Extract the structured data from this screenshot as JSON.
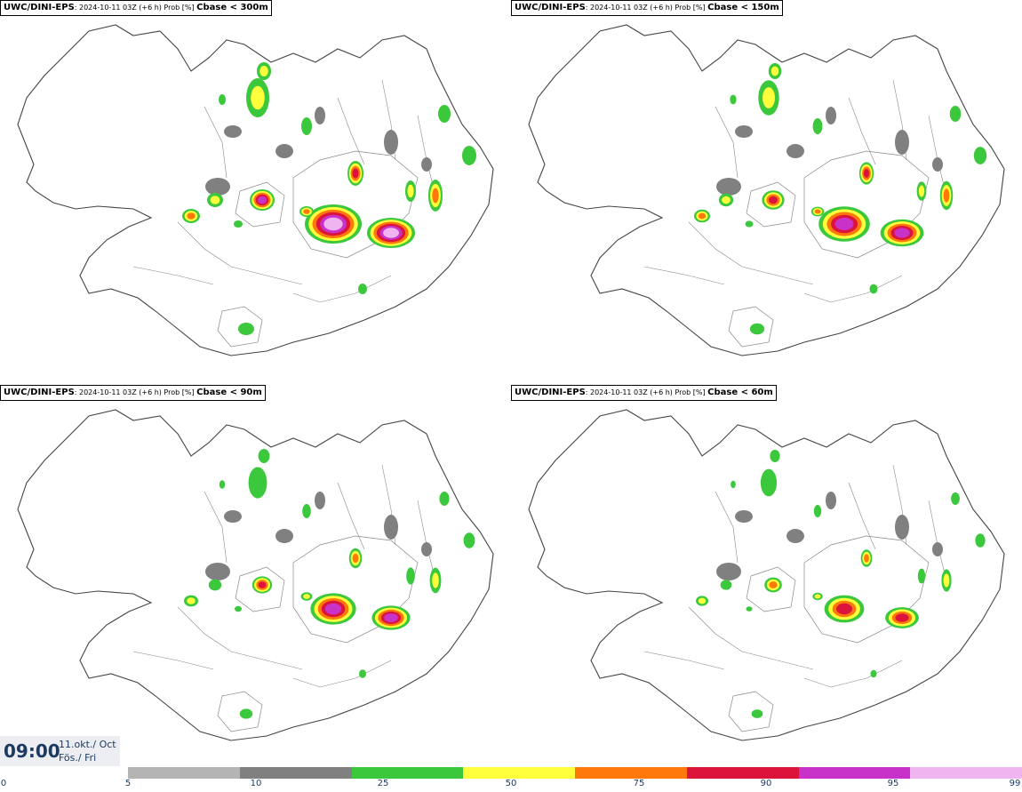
{
  "panels": [
    {
      "model": "UWC/DINI-EPS",
      "meta": ": 2024-10-11 03Z (+6 h) Prob [%] ",
      "variable": "Cbase < 300m",
      "intensity": 1.0
    },
    {
      "model": "UWC/DINI-EPS",
      "meta": ": 2024-10-11 03Z (+6 h) Prob [%] ",
      "variable": "Cbase < 150m",
      "intensity": 0.9
    },
    {
      "model": "UWC/DINI-EPS",
      "meta": ": 2024-10-11 03Z (+6 h) Prob [%] ",
      "variable": "Cbase < 90m",
      "intensity": 0.8
    },
    {
      "model": "UWC/DINI-EPS",
      "meta": ": 2024-10-11 03Z (+6 h) Prob [%] ",
      "variable": "Cbase < 60m",
      "intensity": 0.7
    }
  ],
  "valid_time": {
    "time": "09:00",
    "date_line1": "11.okt./ Oct",
    "date_line2": "Fös./ Fri"
  },
  "legend": {
    "labels": [
      "0",
      "5",
      "10",
      "25",
      "50",
      "75",
      "90",
      "95",
      "99"
    ],
    "colors": [
      "#b4b4b4",
      "#808080",
      "#3cc83c",
      "#ffff3c",
      "#ff780a",
      "#dc143c",
      "#c832c8",
      "#f0b4f0"
    ]
  },
  "colors": {
    "coast": "#444444",
    "rivers": "#888888",
    "text_blue": "#1d3a63"
  }
}
